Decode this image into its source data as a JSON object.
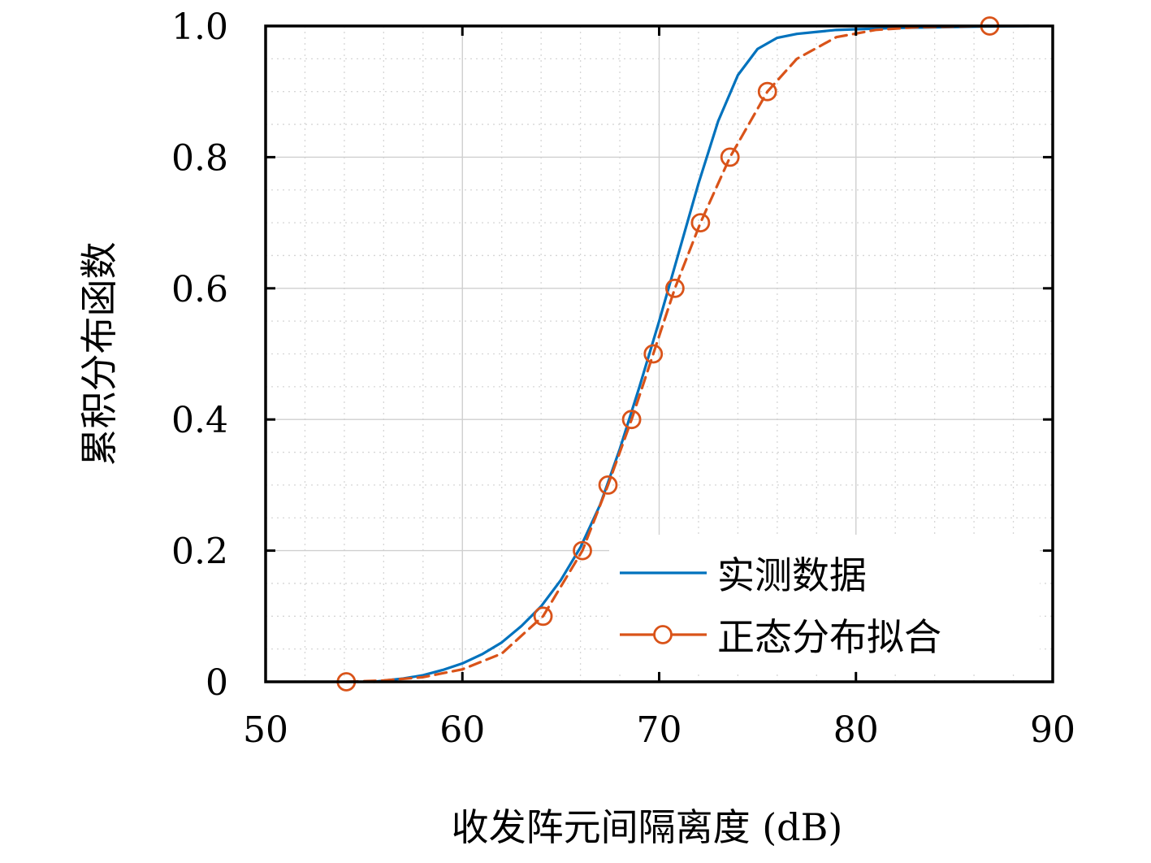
{
  "chart_data": {
    "type": "line",
    "xlabel": "收发阵元间隔离度 (dB)",
    "ylabel": "累积分布函数",
    "xlim": [
      50,
      90
    ],
    "ylim": [
      0,
      1
    ],
    "xticks": [
      50,
      60,
      70,
      80,
      90
    ],
    "xtick_labels": [
      "50",
      "60",
      "70",
      "80",
      "90"
    ],
    "yticks": [
      0,
      0.2,
      0.4,
      0.6,
      0.8,
      1.0
    ],
    "ytick_labels": [
      "0",
      "0.2",
      "0.4",
      "0.6",
      "0.8",
      "1.0"
    ],
    "grid": true,
    "minor_grid": true,
    "legend_position": "bottom-right",
    "series": [
      {
        "name": "实测数据",
        "color": "#0072BD",
        "line_style": "solid",
        "marker": "none",
        "x": [
          55.5,
          57,
          58,
          59,
          60,
          61,
          62,
          63,
          64,
          65,
          66,
          67,
          68,
          69,
          70,
          71,
          72,
          73,
          74,
          75,
          76,
          77,
          78,
          79,
          80,
          82,
          84,
          86,
          88.8
        ],
        "y": [
          0.0,
          0.005,
          0.01,
          0.018,
          0.028,
          0.042,
          0.06,
          0.085,
          0.115,
          0.155,
          0.205,
          0.27,
          0.355,
          0.45,
          0.55,
          0.655,
          0.76,
          0.855,
          0.925,
          0.965,
          0.982,
          0.988,
          0.991,
          0.994,
          0.995,
          0.997,
          0.998,
          0.999,
          1.0
        ]
      },
      {
        "name": "正态分布拟合",
        "color": "#D95319",
        "line_style": "dashed",
        "marker": "circle",
        "x": [
          54.1,
          56,
          58,
          60,
          62,
          64.1,
          66.1,
          67.4,
          68.6,
          69.7,
          70.8,
          72.1,
          73.6,
          75.5,
          77,
          79,
          81,
          83,
          86.8
        ],
        "y": [
          0.0,
          0.002,
          0.007,
          0.019,
          0.043,
          0.1,
          0.2,
          0.3,
          0.4,
          0.5,
          0.6,
          0.7,
          0.8,
          0.9,
          0.95,
          0.983,
          0.994,
          0.998,
          1.0
        ],
        "marker_x": [
          54.1,
          64.1,
          66.1,
          67.4,
          68.6,
          69.7,
          70.8,
          72.1,
          73.6,
          75.5,
          86.8
        ],
        "marker_y": [
          0.0,
          0.1,
          0.2,
          0.3,
          0.4,
          0.5,
          0.6,
          0.7,
          0.8,
          0.9,
          1.0
        ]
      }
    ]
  }
}
